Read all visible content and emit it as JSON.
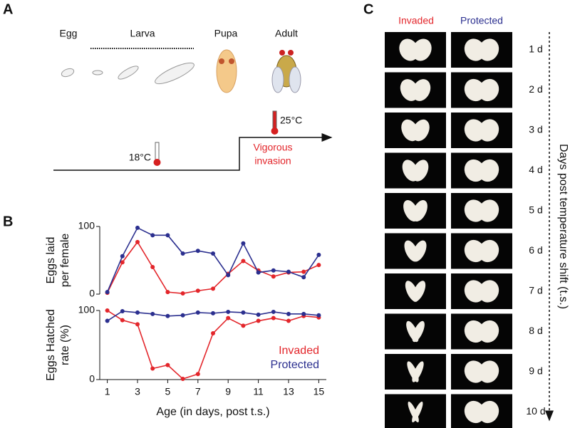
{
  "panel_labels": [
    "A",
    "B",
    "C"
  ],
  "diagram": {
    "stages": [
      "Egg",
      "Larva",
      "Pupa",
      "Adult"
    ],
    "temperatures": [
      "18°C",
      "25°C"
    ],
    "annotation": [
      "Vigorous",
      "invasion"
    ]
  },
  "chart_data": [
    {
      "type": "line",
      "ylabel": [
        "Eggs laid",
        "per female"
      ],
      "x": [
        1,
        2,
        3,
        4,
        5,
        6,
        7,
        8,
        9,
        10,
        11,
        12,
        13,
        14,
        15
      ],
      "xlim": [
        0.5,
        15.5
      ],
      "ylim": [
        0,
        100
      ],
      "yticks": [
        0,
        100
      ],
      "series": [
        {
          "color": "#e3262b",
          "values": [
            2,
            47,
            77,
            40,
            3,
            1,
            5,
            8,
            30,
            49,
            35,
            26,
            32,
            33,
            43
          ]
        },
        {
          "color": "#2b2f8f",
          "values": [
            3,
            56,
            98,
            87,
            87,
            60,
            64,
            60,
            28,
            75,
            32,
            35,
            33,
            25,
            58
          ]
        }
      ]
    },
    {
      "type": "line",
      "ylabel": [
        "Eggs Hatched",
        "rate (%)"
      ],
      "xlabel": "Age (in days, post t.s.)",
      "x": [
        1,
        2,
        3,
        4,
        5,
        6,
        7,
        8,
        9,
        10,
        11,
        12,
        13,
        14,
        15
      ],
      "xlim": [
        0.5,
        15.5
      ],
      "xticks": [
        1,
        3,
        5,
        7,
        9,
        11,
        13,
        15
      ],
      "ylim": [
        0,
        100
      ],
      "yticks": [
        0,
        100
      ],
      "legend": "lower right",
      "series": [
        {
          "name": "Invaded",
          "color": "#e3262b",
          "values": [
            100,
            86,
            80,
            16,
            21,
            1,
            8,
            67,
            89,
            78,
            85,
            89,
            85,
            92,
            90
          ]
        },
        {
          "name": "Protected",
          "color": "#2b2f8f",
          "values": [
            85,
            99,
            97,
            95,
            92,
            93,
            97,
            96,
            98,
            97,
            94,
            98,
            95,
            95,
            93
          ]
        }
      ]
    }
  ],
  "images": {
    "columns": [
      "Invaded",
      "Protected"
    ],
    "rows": [
      "1 d",
      "2 d",
      "3 d",
      "4 d",
      "5 d",
      "6 d",
      "7 d",
      "8 d",
      "9 d",
      "10 d"
    ],
    "axis_label": "Days post temperature shift (t.s.)"
  }
}
